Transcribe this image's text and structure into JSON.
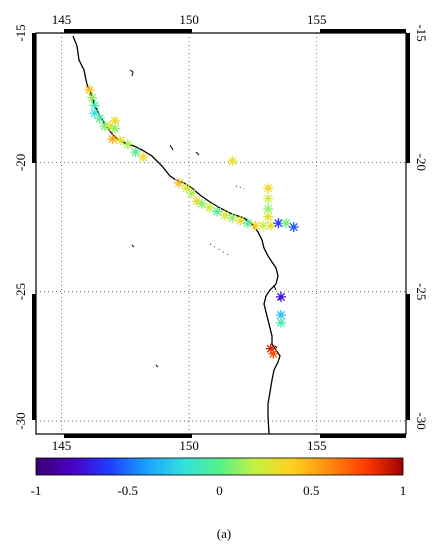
{
  "map": {
    "x_ticks": [
      "145",
      "150",
      "155"
    ],
    "y_ticks": [
      "-15",
      "-20",
      "-25",
      "-30"
    ],
    "lon_range": [
      144,
      158.5
    ],
    "lat_range": [
      -30.5,
      -15
    ],
    "grid": "dotted",
    "marker": "asterisk",
    "points": [
      {
        "lon": 146.1,
        "lat": -17.2,
        "v": 0.45
      },
      {
        "lon": 146.2,
        "lat": -17.5,
        "v": 0.1
      },
      {
        "lon": 146.3,
        "lat": -17.8,
        "v": -0.1
      },
      {
        "lon": 146.3,
        "lat": -18.1,
        "v": -0.2
      },
      {
        "lon": 146.5,
        "lat": -18.3,
        "v": -0.05
      },
      {
        "lon": 146.7,
        "lat": -18.6,
        "v": 0.05
      },
      {
        "lon": 146.9,
        "lat": -18.6,
        "v": 0.25
      },
      {
        "lon": 147.1,
        "lat": -18.4,
        "v": 0.35
      },
      {
        "lon": 147.1,
        "lat": -18.7,
        "v": 0.1
      },
      {
        "lon": 147.0,
        "lat": -19.1,
        "v": 0.5
      },
      {
        "lon": 147.3,
        "lat": -19.15,
        "v": 0.3
      },
      {
        "lon": 147.6,
        "lat": -19.3,
        "v": 0.15
      },
      {
        "lon": 147.9,
        "lat": -19.6,
        "v": 0.0
      },
      {
        "lon": 148.2,
        "lat": -19.8,
        "v": 0.35
      },
      {
        "lon": 151.7,
        "lat": -19.95,
        "v": 0.3
      },
      {
        "lon": 149.6,
        "lat": -20.8,
        "v": 0.45
      },
      {
        "lon": 149.9,
        "lat": -21.0,
        "v": 0.25
      },
      {
        "lon": 150.1,
        "lat": -21.2,
        "v": 0.15
      },
      {
        "lon": 150.3,
        "lat": -21.5,
        "v": 0.3
      },
      {
        "lon": 150.5,
        "lat": -21.6,
        "v": 0.1
      },
      {
        "lon": 150.8,
        "lat": -21.75,
        "v": 0.2
      },
      {
        "lon": 151.1,
        "lat": -21.9,
        "v": 0.0
      },
      {
        "lon": 151.4,
        "lat": -22.05,
        "v": 0.25
      },
      {
        "lon": 151.7,
        "lat": -22.15,
        "v": 0.1
      },
      {
        "lon": 152.0,
        "lat": -22.25,
        "v": 0.3
      },
      {
        "lon": 152.3,
        "lat": -22.35,
        "v": 0.0
      },
      {
        "lon": 152.6,
        "lat": -22.45,
        "v": 0.4
      },
      {
        "lon": 152.9,
        "lat": -22.45,
        "v": 0.2
      },
      {
        "lon": 153.2,
        "lat": -22.45,
        "v": 0.3
      },
      {
        "lon": 153.1,
        "lat": -21.0,
        "v": 0.35
      },
      {
        "lon": 153.1,
        "lat": -21.4,
        "v": 0.2
      },
      {
        "lon": 153.1,
        "lat": -21.8,
        "v": 0.1
      },
      {
        "lon": 153.1,
        "lat": -22.1,
        "v": 0.3
      },
      {
        "lon": 153.5,
        "lat": -22.35,
        "v": -0.6
      },
      {
        "lon": 153.8,
        "lat": -22.35,
        "v": 0.05
      },
      {
        "lon": 154.1,
        "lat": -22.5,
        "v": -0.55
      },
      {
        "lon": 153.6,
        "lat": -25.2,
        "v": -0.75
      },
      {
        "lon": 153.6,
        "lat": -25.9,
        "v": -0.3
      },
      {
        "lon": 153.6,
        "lat": -26.2,
        "v": -0.1
      },
      {
        "lon": 153.2,
        "lat": -27.2,
        "v": 0.9
      },
      {
        "lon": 153.3,
        "lat": -27.4,
        "v": 0.75
      }
    ]
  },
  "colorbar": {
    "labels": [
      "-1",
      "-0.5",
      "0",
      "0.5",
      "1"
    ],
    "min": -1,
    "max": 1,
    "colors": [
      "#3b0070",
      "#4a00c4",
      "#1f3cff",
      "#1aa0ff",
      "#33e0e0",
      "#56f08a",
      "#c8f040",
      "#ffd020",
      "#ff8a10",
      "#ff3a00",
      "#a00000"
    ]
  },
  "caption": "(a)"
}
